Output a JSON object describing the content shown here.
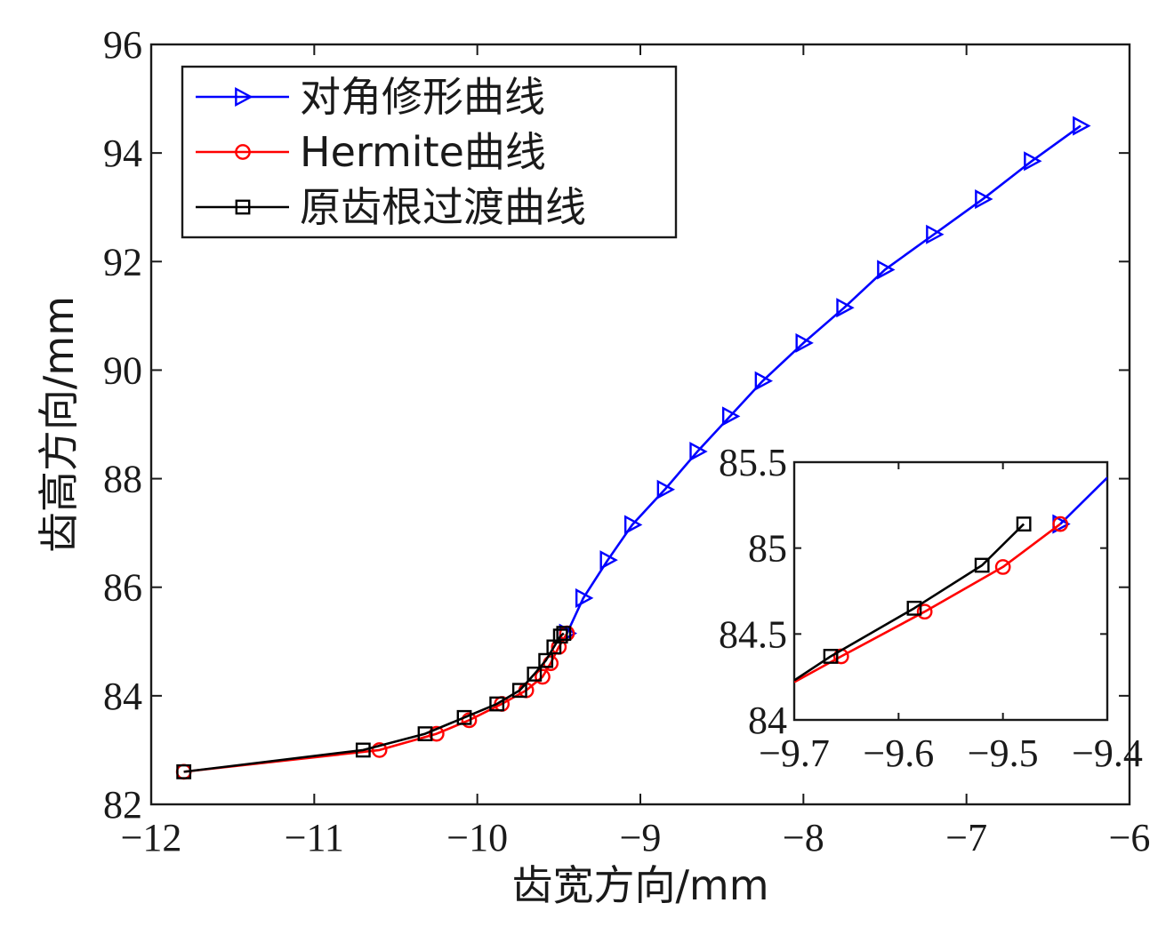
{
  "chart_data": [
    {
      "type": "line",
      "xlabel": "齿宽方向/mm",
      "ylabel": "齿高方向/mm",
      "xlim": [
        -12,
        -6
      ],
      "ylim": [
        82,
        96
      ],
      "xticks": [
        -12,
        -11,
        -10,
        -9,
        -8,
        -7,
        -6
      ],
      "yticks": [
        82,
        84,
        86,
        88,
        90,
        92,
        94,
        96
      ],
      "xtick_labels": [
        "−12",
        "−11",
        "−10",
        "−9",
        "−8",
        "−7",
        "−6"
      ],
      "ytick_labels": [
        "82",
        "84",
        "86",
        "88",
        "90",
        "92",
        "94",
        "96"
      ],
      "grid": false,
      "legend_position": "top-left",
      "series": [
        {
          "name": "对角修形曲线",
          "color": "#0000ff",
          "marker": "triangle-right",
          "x": [
            -9.45,
            -9.35,
            -9.2,
            -9.05,
            -8.85,
            -8.65,
            -8.45,
            -8.25,
            -8.0,
            -7.75,
            -7.5,
            -7.2,
            -6.9,
            -6.6,
            -6.3
          ],
          "y": [
            85.15,
            85.8,
            86.5,
            87.15,
            87.8,
            88.5,
            89.15,
            89.8,
            90.5,
            91.15,
            91.85,
            92.5,
            93.15,
            93.85,
            94.5
          ]
        },
        {
          "name": "Hermite曲线",
          "color": "#ff0000",
          "marker": "circle",
          "x": [
            -11.8,
            -10.6,
            -10.25,
            -10.05,
            -9.85,
            -9.7,
            -9.6,
            -9.55,
            -9.5,
            -9.45
          ],
          "y": [
            82.6,
            83.0,
            83.3,
            83.55,
            83.85,
            84.1,
            84.35,
            84.6,
            84.9,
            85.15
          ]
        },
        {
          "name": "原齿根过渡曲线",
          "color": "#000000",
          "marker": "square",
          "x": [
            -11.8,
            -10.7,
            -10.32,
            -10.08,
            -9.88,
            -9.74,
            -9.65,
            -9.58,
            -9.53,
            -9.49,
            -9.47
          ],
          "y": [
            82.6,
            83.0,
            83.3,
            83.6,
            83.85,
            84.1,
            84.4,
            84.65,
            84.9,
            85.1,
            85.15
          ]
        }
      ]
    },
    {
      "type": "line",
      "inset": true,
      "xlim": [
        -9.7,
        -9.4
      ],
      "ylim": [
        84,
        85.5
      ],
      "xticks": [
        -9.7,
        -9.6,
        -9.5,
        -9.4
      ],
      "yticks": [
        84,
        84.5,
        85,
        85.5
      ],
      "xtick_labels": [
        "−9.7",
        "−9.6",
        "−9.5",
        "−9.4"
      ],
      "ytick_labels": [
        "84",
        "84.5",
        "85",
        "85.5"
      ],
      "grid": false,
      "series": [
        {
          "name": "对角修形曲线",
          "color": "#0000ff",
          "marker": "triangle-right",
          "x": [
            -9.445,
            -9.4
          ],
          "y": [
            85.14,
            85.41
          ],
          "marker_x": [
            -9.445
          ],
          "marker_y": [
            85.14
          ]
        },
        {
          "name": "Hermite曲线",
          "color": "#ff0000",
          "marker": "circle",
          "x": [
            -9.7,
            -9.655,
            -9.575,
            -9.5,
            -9.445
          ],
          "y": [
            84.22,
            84.37,
            84.63,
            84.89,
            85.14
          ],
          "marker_x": [
            -9.655,
            -9.575,
            -9.5,
            -9.445
          ],
          "marker_y": [
            84.37,
            84.63,
            84.89,
            85.14
          ]
        },
        {
          "name": "原齿根过渡曲线",
          "color": "#000000",
          "marker": "square",
          "x": [
            -9.7,
            -9.665,
            -9.585,
            -9.52,
            -9.48
          ],
          "y": [
            84.23,
            84.37,
            84.65,
            84.9,
            85.14
          ],
          "marker_x": [
            -9.665,
            -9.585,
            -9.52,
            -9.48
          ],
          "marker_y": [
            84.37,
            84.65,
            84.9,
            85.14
          ]
        }
      ]
    }
  ]
}
